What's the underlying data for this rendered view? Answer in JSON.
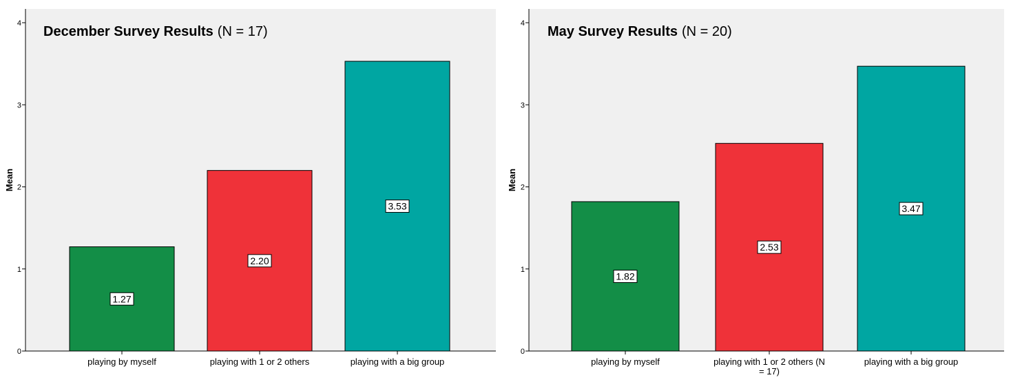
{
  "chart_data": [
    {
      "type": "bar",
      "title": "December Survey Results",
      "subtitle": "(N = 17)",
      "xlabel": "",
      "ylabel": "Mean",
      "ylim": [
        0,
        4
      ],
      "yticks": [
        "0",
        "1",
        "2",
        "3",
        "4"
      ],
      "grid": false,
      "categories": [
        "playing by myself",
        "playing with 1 or 2 others",
        "playing with a big group"
      ],
      "values": [
        1.27,
        2.2,
        3.53
      ],
      "data_labels": [
        "1.27",
        "2.20",
        "3.53"
      ],
      "colors": [
        "#138e47",
        "#ef3239",
        "#00a6a2"
      ],
      "plot_background": "#f0f0f0"
    },
    {
      "type": "bar",
      "title": "May Survey Results",
      "subtitle": "(N = 20)",
      "xlabel": "",
      "ylabel": "Mean",
      "ylim": [
        0,
        4
      ],
      "yticks": [
        "0",
        "1",
        "2",
        "3",
        "4"
      ],
      "grid": false,
      "categories": [
        "playing by myself",
        "playing with 1 or 2 others (N = 17)",
        "playing with a big group"
      ],
      "values": [
        1.82,
        2.53,
        3.47
      ],
      "data_labels": [
        "1.82",
        "2.53",
        "3.47"
      ],
      "colors": [
        "#138e47",
        "#ef3239",
        "#00a6a2"
      ],
      "plot_background": "#f0f0f0"
    }
  ]
}
